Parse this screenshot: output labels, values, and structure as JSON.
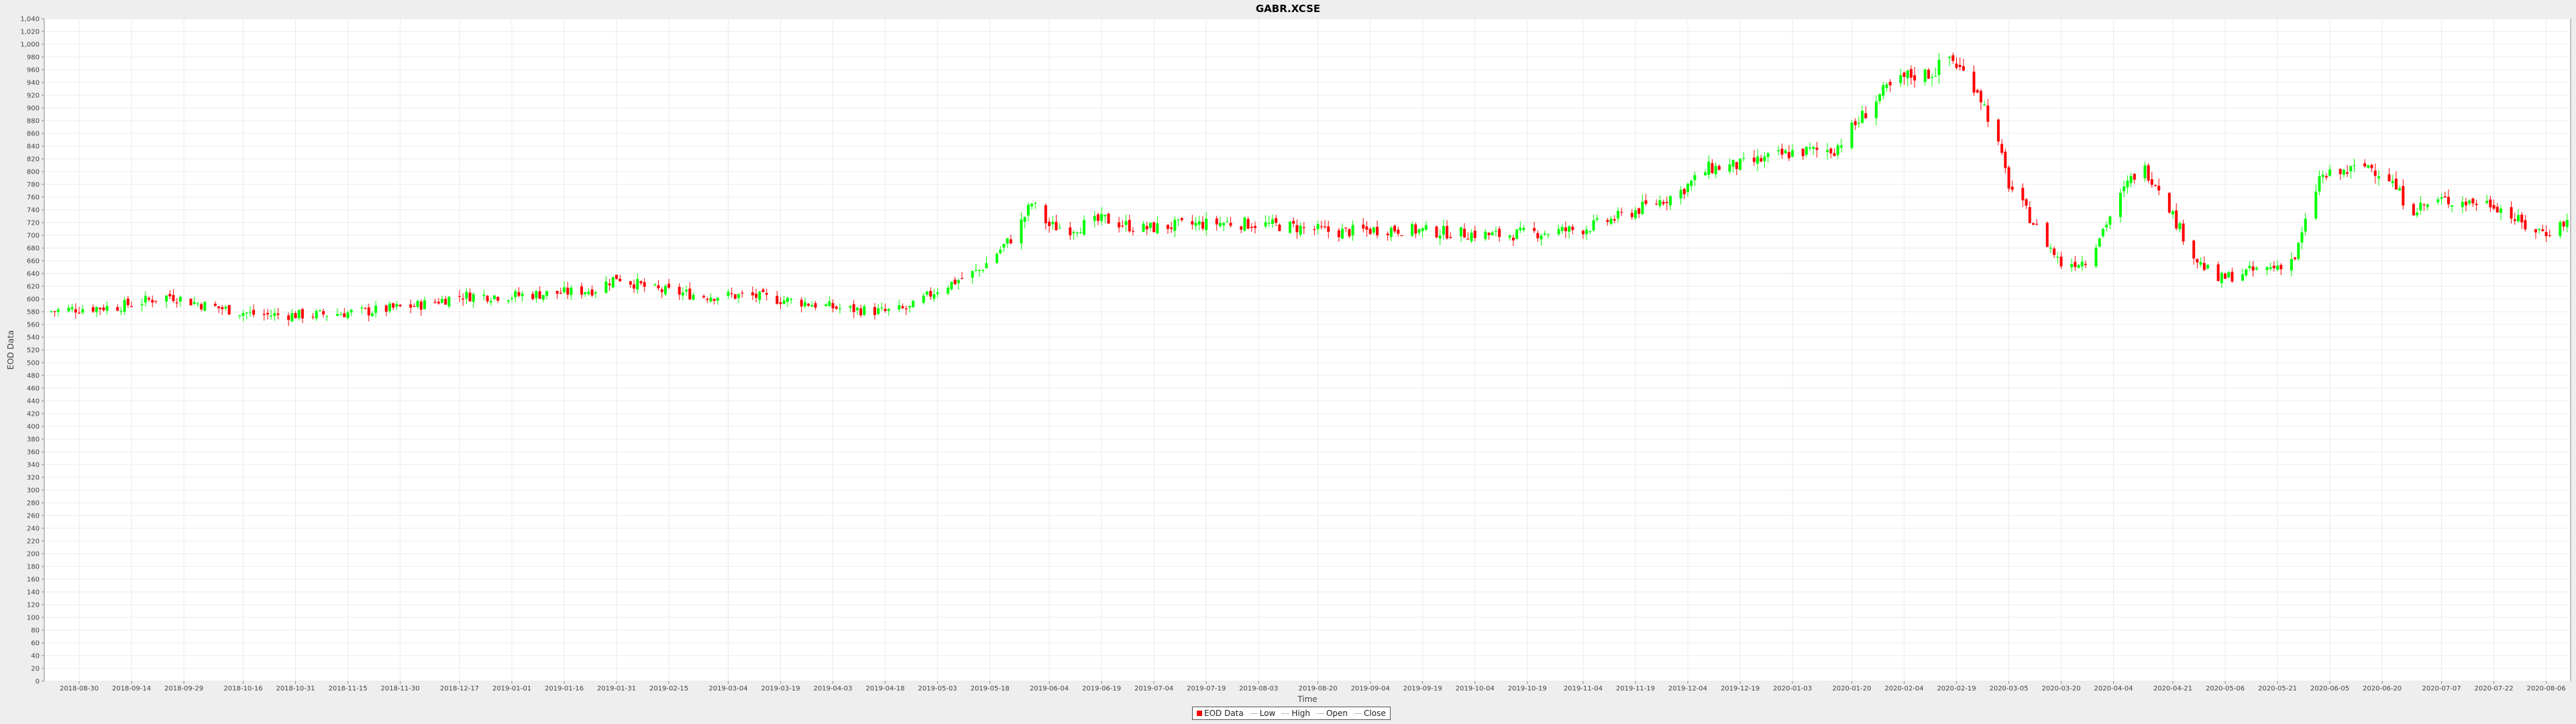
{
  "chart_data": {
    "type": "candlestick",
    "title": "GABR.XCSE",
    "xlabel": "Time",
    "ylabel": "EOD Data",
    "ylim": [
      0,
      1040
    ],
    "ytick_step": 20,
    "grid": true,
    "legend_placement": "bottom-center",
    "up_color": "#00ff00",
    "down_color": "#ff0000",
    "x_ticks": [
      "2018-08-30",
      "2018-09-14",
      "2018-09-29",
      "2018-10-16",
      "2018-10-31",
      "2018-11-15",
      "2018-11-30",
      "2018-12-17",
      "2019-01-01",
      "2019-01-16",
      "2019-01-31",
      "2019-02-15",
      "2019-03-04",
      "2019-03-19",
      "2019-04-03",
      "2019-04-18",
      "2019-05-03",
      "2019-05-18",
      "2019-06-04",
      "2019-06-19",
      "2019-07-04",
      "2019-07-19",
      "2019-08-03",
      "2019-08-20",
      "2019-09-04",
      "2019-09-19",
      "2019-10-04",
      "2019-10-19",
      "2019-11-04",
      "2019-11-19",
      "2019-12-04",
      "2019-12-19",
      "2020-01-03",
      "2020-01-20",
      "2020-02-04",
      "2020-02-19",
      "2020-03-05",
      "2020-03-20",
      "2020-04-04",
      "2020-04-21",
      "2020-05-06",
      "2020-05-21",
      "2020-06-05",
      "2020-06-20",
      "2020-07-07",
      "2020-07-22",
      "2020-08-06"
    ],
    "x_start": "2018-08-20",
    "x_end": "2020-08-13",
    "close_path": [
      [
        "2018-08-20",
        580
      ],
      [
        "2018-08-30",
        585
      ],
      [
        "2018-09-10",
        588
      ],
      [
        "2018-09-25",
        605
      ],
      [
        "2018-10-05",
        590
      ],
      [
        "2018-10-20",
        575
      ],
      [
        "2018-11-05",
        575
      ],
      [
        "2018-11-20",
        580
      ],
      [
        "2018-12-05",
        590
      ],
      [
        "2018-12-17",
        605
      ],
      [
        "2019-01-01",
        605
      ],
      [
        "2019-01-16",
        610
      ],
      [
        "2019-01-25",
        615
      ],
      [
        "2019-01-31",
        635
      ],
      [
        "2019-02-10",
        615
      ],
      [
        "2019-02-25",
        605
      ],
      [
        "2019-03-10",
        605
      ],
      [
        "2019-03-25",
        595
      ],
      [
        "2019-04-05",
        585
      ],
      [
        "2019-04-18",
        580
      ],
      [
        "2019-04-25",
        585
      ],
      [
        "2019-05-03",
        615
      ],
      [
        "2019-05-15",
        645
      ],
      [
        "2019-05-25",
        700
      ],
      [
        "2019-05-30",
        750
      ],
      [
        "2019-06-04",
        715
      ],
      [
        "2019-06-10",
        710
      ],
      [
        "2019-06-20",
        725
      ],
      [
        "2019-06-30",
        710
      ],
      [
        "2019-07-10",
        715
      ],
      [
        "2019-07-25",
        720
      ],
      [
        "2019-08-10",
        715
      ],
      [
        "2019-08-25",
        705
      ],
      [
        "2019-09-10",
        710
      ],
      [
        "2019-09-25",
        705
      ],
      [
        "2019-10-10",
        700
      ],
      [
        "2019-10-25",
        705
      ],
      [
        "2019-11-04",
        710
      ],
      [
        "2019-11-15",
        730
      ],
      [
        "2019-12-01",
        765
      ],
      [
        "2019-12-10",
        805
      ],
      [
        "2019-12-19",
        810
      ],
      [
        "2020-01-03",
        830
      ],
      [
        "2020-01-15",
        835
      ],
      [
        "2020-01-22",
        880
      ],
      [
        "2020-01-28",
        920
      ],
      [
        "2020-02-05",
        950
      ],
      [
        "2020-02-12",
        955
      ],
      [
        "2020-02-17",
        980
      ],
      [
        "2020-02-25",
        930
      ],
      [
        "2020-03-01",
        860
      ],
      [
        "2020-03-05",
        780
      ],
      [
        "2020-03-12",
        720
      ],
      [
        "2020-03-20",
        655
      ],
      [
        "2020-03-27",
        660
      ],
      [
        "2020-04-03",
        730
      ],
      [
        "2020-04-08",
        780
      ],
      [
        "2020-04-12",
        810
      ],
      [
        "2020-04-18",
        770
      ],
      [
        "2020-04-22",
        720
      ],
      [
        "2020-04-28",
        660
      ],
      [
        "2020-05-04",
        630
      ],
      [
        "2020-05-10",
        640
      ],
      [
        "2020-05-20",
        650
      ],
      [
        "2020-05-26",
        665
      ],
      [
        "2020-06-02",
        790
      ],
      [
        "2020-06-10",
        800
      ],
      [
        "2020-06-16",
        810
      ],
      [
        "2020-06-22",
        790
      ],
      [
        "2020-06-28",
        740
      ],
      [
        "2020-07-07",
        755
      ],
      [
        "2020-07-22",
        750
      ],
      [
        "2020-08-01",
        710
      ],
      [
        "2020-08-06",
        705
      ],
      [
        "2020-08-13",
        725
      ]
    ]
  },
  "legend": {
    "items": [
      {
        "label": "EOD Data"
      },
      {
        "label": "Low"
      },
      {
        "label": "High"
      },
      {
        "label": "Open"
      },
      {
        "label": "Close"
      }
    ]
  }
}
